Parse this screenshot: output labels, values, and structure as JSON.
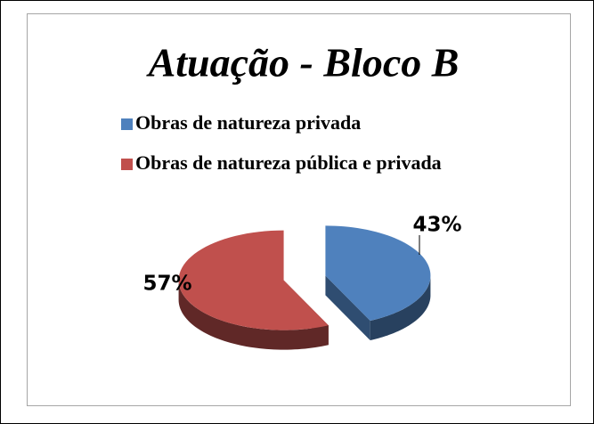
{
  "chart_data": {
    "type": "pie",
    "title": "Atuação - Bloco B",
    "series": [
      {
        "name": "Obras de natureza privada",
        "color": "#4f81bd",
        "values": [
          43
        ],
        "value_labels": [
          "43%"
        ]
      },
      {
        "name": "Obras de natureza pública e privada",
        "color": "#c0504d",
        "values": [
          57
        ],
        "value_labels": [
          "57%"
        ]
      }
    ],
    "legend": "top"
  }
}
